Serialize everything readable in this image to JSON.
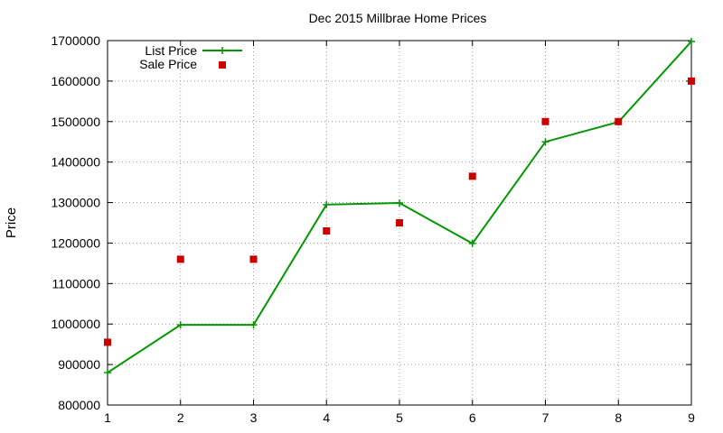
{
  "chart_data": {
    "type": "line",
    "title": "Dec 2015 Millbrae Home Prices",
    "xlabel": "",
    "ylabel": "Price",
    "x": [
      1,
      2,
      3,
      4,
      5,
      6,
      7,
      8,
      9
    ],
    "xlim": [
      1,
      9
    ],
    "ylim": [
      800000,
      1700000
    ],
    "yticks": [
      800000,
      900000,
      1000000,
      1100000,
      1200000,
      1300000,
      1400000,
      1500000,
      1600000,
      1700000
    ],
    "grid": true,
    "legend_position": "top-left",
    "series": [
      {
        "name": "List Price",
        "style": "linespoints",
        "marker": "plus",
        "color": "#009900",
        "values": [
          880000,
          998000,
          998000,
          1295000,
          1299000,
          1199000,
          1450000,
          1499000,
          1698000
        ]
      },
      {
        "name": "Sale Price",
        "style": "points",
        "marker": "square",
        "color": "#cc0000",
        "values": [
          955000,
          1160000,
          1160000,
          1230000,
          1250000,
          1365000,
          1500000,
          1500000,
          1600000
        ]
      }
    ]
  }
}
